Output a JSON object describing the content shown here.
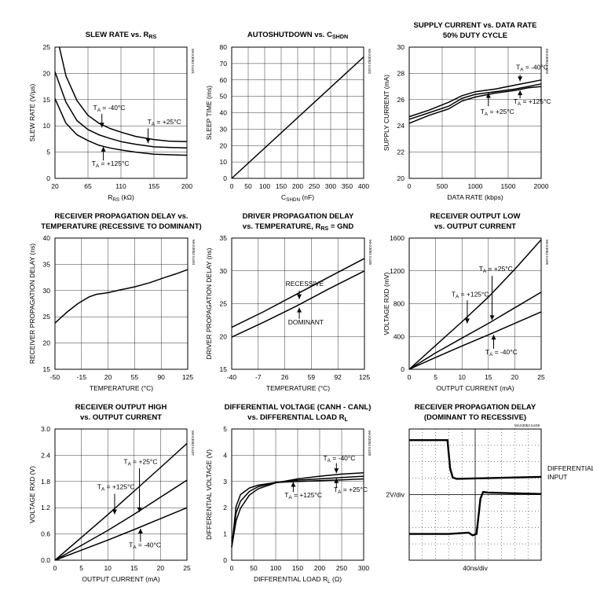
{
  "chart_data": [
    {
      "id": "c1",
      "type": "line",
      "title": [
        "SLEW RATE vs. R",
        "RS"
      ],
      "xlabel": [
        "R",
        "RS",
        " (kΩ)"
      ],
      "ylabel": "SLEW RATE (V/µs)",
      "xlim": [
        20,
        200
      ],
      "ylim": [
        0,
        25
      ],
      "xticks": [
        20,
        65,
        110,
        155,
        200
      ],
      "yticks": [
        0,
        5,
        10,
        15,
        20,
        25
      ],
      "grid": true,
      "part_id": "MAX3053 toc01",
      "series": [
        {
          "name": "TA = -40°C",
          "x": [
            26,
            35,
            50,
            65,
            80,
            95,
            110,
            130,
            155,
            175,
            200
          ],
          "y": [
            25,
            19.5,
            14.8,
            12.0,
            10.5,
            9.5,
            8.8,
            8.0,
            7.4,
            7.1,
            7.0
          ]
        },
        {
          "name": "TA = +25°C",
          "x": [
            20,
            35,
            50,
            65,
            80,
            95,
            110,
            130,
            155,
            175,
            200
          ],
          "y": [
            20.3,
            14.5,
            11.0,
            9.3,
            8.3,
            7.6,
            7.0,
            6.5,
            6.0,
            5.9,
            5.8
          ]
        },
        {
          "name": "TA = +125°C",
          "x": [
            20,
            35,
            50,
            65,
            80,
            95,
            110,
            130,
            155,
            175,
            200
          ],
          "y": [
            15.2,
            10.5,
            8.3,
            7.2,
            6.3,
            5.8,
            5.4,
            5.0,
            4.6,
            4.5,
            4.4
          ]
        }
      ],
      "annotations": [
        {
          "text": [
            "T",
            "A",
            " = -40°C"
          ],
          "x": 72,
          "y": 13.0,
          "arrow": [
            84,
            12.3,
            84,
            9.7
          ]
        },
        {
          "text": [
            "T",
            "A",
            " = +25°C"
          ],
          "x": 146,
          "y": 10.3,
          "arrow": [
            147,
            9.5,
            147,
            6.7
          ]
        },
        {
          "text": [
            "T",
            "A",
            " = +125°C"
          ],
          "x": 70,
          "y": 2.4,
          "arrow": [
            86,
            3.4,
            86,
            6.0
          ]
        }
      ]
    },
    {
      "id": "c2",
      "type": "line",
      "title": [
        "AUTOSHUTDOWN vs. C",
        "SHDN"
      ],
      "xlabel": [
        "C",
        "SHDN",
        " (nF)"
      ],
      "ylabel": "SLEEP TIME (ms)",
      "xlim": [
        0,
        400
      ],
      "ylim": [
        0,
        80
      ],
      "xticks": [
        0,
        50,
        100,
        150,
        200,
        250,
        300,
        350,
        400
      ],
      "yticks": [
        0,
        10,
        20,
        30,
        40,
        50,
        60,
        70,
        80
      ],
      "grid": true,
      "part_id": "MAX3053 toc02",
      "series": [
        {
          "name": "",
          "x": [
            0,
            400
          ],
          "y": [
            0,
            74
          ]
        }
      ],
      "annotations": []
    },
    {
      "id": "c3",
      "type": "line",
      "title": [
        "SUPPLY CURRENT vs. DATA RATE",
        "50% DUTY CYCLE"
      ],
      "xlabel": [
        "DATA RATE (kbps)"
      ],
      "ylabel": "SUPPLY CURRENT (mA)",
      "xlim": [
        0,
        2000
      ],
      "ylim": [
        20,
        30
      ],
      "xticks": [
        0,
        500,
        1000,
        1500,
        2000
      ],
      "yticks": [
        20,
        22,
        24,
        26,
        28,
        30
      ],
      "grid": true,
      "part_id": "MAX3053 toc03",
      "series": [
        {
          "name": "TA = -40°C",
          "x": [
            0,
            300,
            600,
            800,
            1000,
            1300,
            1600,
            1800,
            2000
          ],
          "y": [
            24.7,
            25.2,
            25.8,
            26.3,
            26.6,
            26.8,
            27.1,
            27.3,
            27.5
          ]
        },
        {
          "name": "TA = +25°C",
          "x": [
            0,
            300,
            600,
            800,
            1000,
            1300,
            1600,
            1800,
            2000
          ],
          "y": [
            24.5,
            25.0,
            25.5,
            26.1,
            26.4,
            26.6,
            26.8,
            27.0,
            27.2
          ]
        },
        {
          "name": "TA = +125°C",
          "x": [
            0,
            300,
            600,
            800,
            1000,
            1300,
            1600,
            1800,
            2000
          ],
          "y": [
            24.2,
            24.8,
            25.3,
            25.9,
            26.2,
            26.5,
            26.7,
            26.9,
            27.0
          ]
        }
      ],
      "annotations": [
        {
          "text": [
            "T",
            "A",
            " = -40°C"
          ],
          "x": 1620,
          "y": 28.3,
          "arrow": [
            1680,
            27.9,
            1680,
            27.4
          ]
        },
        {
          "text": [
            "T",
            "A",
            " = +25°C"
          ],
          "x": 1080,
          "y": 24.9,
          "arrow": [
            1200,
            25.5,
            1200,
            26.5
          ]
        },
        {
          "text": [
            "T",
            "A",
            " = +125°C"
          ],
          "x": 1580,
          "y": 25.7,
          "arrow": [
            1680,
            26.1,
            1680,
            26.7
          ]
        }
      ]
    },
    {
      "id": "c4",
      "type": "line",
      "title": [
        "RECEIVER PROPAGATION DELAY vs.",
        "TEMPERATURE (RECESSIVE TO DOMINANT)"
      ],
      "xlabel": [
        "TEMPERATURE (°C)"
      ],
      "ylabel": "RECEIVER PROPAGATION DELAY (ns)",
      "xlim": [
        -50,
        125
      ],
      "ylim": [
        15,
        40
      ],
      "xticks": [
        -50,
        -15,
        20,
        55,
        90,
        125
      ],
      "yticks": [
        15,
        20,
        25,
        30,
        35,
        40
      ],
      "grid": true,
      "part_id": "MAX3053 toc04",
      "series": [
        {
          "name": "",
          "x": [
            -50,
            -35,
            -20,
            -5,
            5,
            20,
            35,
            55,
            75,
            95,
            110,
            125
          ],
          "y": [
            23.8,
            25.8,
            27.5,
            28.8,
            29.3,
            29.6,
            30.1,
            30.7,
            31.5,
            32.5,
            33.2,
            34.0
          ]
        }
      ],
      "annotations": []
    },
    {
      "id": "c5",
      "type": "line",
      "title": [
        "DRIVER PROPAGATION DELAY",
        "vs. TEMPERATURE, R",
        "RS",
        " = GND"
      ],
      "xlabel": [
        "TEMPERATURE (°C)"
      ],
      "ylabel": "DRIVER PROPAGATION DELAY (ns)",
      "xlim": [
        -40,
        125
      ],
      "ylim": [
        15,
        35
      ],
      "xticks": [
        -40,
        -7,
        26,
        59,
        92,
        125
      ],
      "yticks": [
        15,
        20,
        25,
        30,
        35
      ],
      "grid": true,
      "part_id": "MAX3053 toc05",
      "series": [
        {
          "name": "RECESSIVE",
          "x": [
            -40,
            0,
            40,
            80,
            125
          ],
          "y": [
            21.4,
            23.8,
            26.4,
            29.0,
            31.9
          ]
        },
        {
          "name": "DOMINANT",
          "x": [
            -40,
            0,
            40,
            80,
            125
          ],
          "y": [
            19.9,
            22.2,
            24.6,
            27.2,
            30.0
          ]
        }
      ],
      "annotations": [
        {
          "text": [
            "RECESSIVE"
          ],
          "x": 27,
          "y": 27.7,
          "arrow": [
            44,
            27.0,
            44,
            25.7
          ]
        },
        {
          "text": [
            "DOMINANT"
          ],
          "x": 30,
          "y": 21.8,
          "arrow": [
            44,
            22.7,
            44,
            24.4
          ]
        }
      ]
    },
    {
      "id": "c6",
      "type": "line",
      "title": [
        "RECEIVER OUTPUT LOW",
        "vs. OUTPUT CURRENT"
      ],
      "xlabel": [
        "OUTPUT CURRENT (mA)"
      ],
      "ylabel": "VOLTAGE RXD (mV)",
      "xlim": [
        0,
        25
      ],
      "ylim": [
        0,
        1600
      ],
      "xticks": [
        0,
        5,
        10,
        15,
        20,
        25
      ],
      "yticks": [
        0,
        400,
        800,
        1200,
        1600
      ],
      "grid": true,
      "part_id": "MAX3053 toc06",
      "series": [
        {
          "name": "TA = +125°C",
          "x": [
            0,
            5,
            10,
            15,
            20,
            25
          ],
          "y": [
            0,
            290,
            580,
            880,
            1220,
            1580
          ]
        },
        {
          "name": "TA = +25°C",
          "x": [
            0,
            5,
            10,
            15,
            20,
            25
          ],
          "y": [
            0,
            200,
            380,
            560,
            750,
            940
          ]
        },
        {
          "name": "TA = -40°C",
          "x": [
            0,
            5,
            10,
            15,
            20,
            25
          ],
          "y": [
            0,
            145,
            285,
            420,
            560,
            700
          ]
        }
      ],
      "annotations": [
        {
          "text": [
            "T",
            "A",
            " = +25°C"
          ],
          "x": 13.2,
          "y": 1200,
          "arrow": [
            15.7,
            1140,
            15.7,
            600
          ]
        },
        {
          "text": [
            "T",
            "A",
            " = +125°C"
          ],
          "x": 8,
          "y": 885,
          "arrow": [
            11,
            840,
            11,
            560
          ]
        },
        {
          "text": [
            "T",
            "A",
            " = -40°C"
          ],
          "x": 14.4,
          "y": 180,
          "arrow": [
            16,
            250,
            16,
            420
          ]
        }
      ]
    },
    {
      "id": "c7",
      "type": "line",
      "title": [
        "RECEIVER OUTPUT HIGH",
        "vs. OUTPUT CURRENT"
      ],
      "xlabel": [
        "OUTPUT CURRENT (mA)"
      ],
      "ylabel": "VOLTAGE RXD (V)",
      "xlim": [
        0,
        25
      ],
      "ylim": [
        0,
        3.0
      ],
      "xticks": [
        0,
        5,
        10,
        15,
        20,
        25
      ],
      "yticks": [
        0,
        0.6,
        1.2,
        1.8,
        2.4,
        3.0
      ],
      "grid": true,
      "part_id": "MAX3053 toc07",
      "series": [
        {
          "name": "TA = +125°C",
          "x": [
            0,
            5,
            10,
            15,
            20,
            25
          ],
          "y": [
            0,
            0.52,
            1.04,
            1.58,
            2.12,
            2.67
          ]
        },
        {
          "name": "TA = +25°C",
          "x": [
            0,
            5,
            10,
            15,
            20,
            25
          ],
          "y": [
            0,
            0.34,
            0.68,
            1.05,
            1.44,
            1.83
          ]
        },
        {
          "name": "TA = -40°C",
          "x": [
            0,
            5,
            10,
            15,
            20,
            25
          ],
          "y": [
            0,
            0.23,
            0.46,
            0.7,
            0.95,
            1.2
          ]
        }
      ],
      "annotations": [
        {
          "text": [
            "T",
            "A",
            " = +25°C"
          ],
          "x": 13,
          "y": 2.2,
          "arrow": [
            16,
            2.1,
            16,
            1.1
          ]
        },
        {
          "text": [
            "T",
            "A",
            " = +125°C"
          ],
          "x": 8,
          "y": 1.63,
          "arrow": [
            11.3,
            1.52,
            11.3,
            1.05
          ]
        },
        {
          "text": [
            "T",
            "A",
            " = -40°C"
          ],
          "x": 14,
          "y": 0.3,
          "arrow": [
            16.2,
            0.42,
            16.2,
            0.72
          ]
        }
      ]
    },
    {
      "id": "c8",
      "type": "line",
      "title": [
        "DIFFERENTIAL VOLTAGE (CANH - CANL)",
        "vs. DIFFERENTIAL LOAD R",
        "L"
      ],
      "xlabel": [
        "DIFFERENTIAL LOAD R",
        "L",
        " (Ω)"
      ],
      "ylabel": "DIFFERENTIAL VOLTAGE (V)",
      "xlim": [
        0,
        300
      ],
      "ylim": [
        0,
        5
      ],
      "xticks": [
        0,
        50,
        100,
        150,
        200,
        250,
        300
      ],
      "yticks": [
        0,
        1,
        2,
        3,
        4,
        5
      ],
      "grid": true,
      "part_id": "MAX3053 toc08",
      "series": [
        {
          "name": "TA = -40°C",
          "x": [
            0,
            10,
            20,
            40,
            60,
            100,
            150,
            200,
            250,
            300
          ],
          "y": [
            0.5,
            1.5,
            1.98,
            2.48,
            2.72,
            2.95,
            3.1,
            3.2,
            3.28,
            3.33
          ]
        },
        {
          "name": "TA = +25°C",
          "x": [
            0,
            10,
            20,
            40,
            60,
            100,
            150,
            200,
            250,
            300
          ],
          "y": [
            0.5,
            1.8,
            2.25,
            2.62,
            2.8,
            2.97,
            3.05,
            3.1,
            3.15,
            3.2
          ]
        },
        {
          "name": "TA = +125°C",
          "x": [
            0,
            10,
            20,
            40,
            60,
            100,
            150,
            200,
            250,
            300
          ],
          "y": [
            0.5,
            2.05,
            2.5,
            2.75,
            2.86,
            2.96,
            3.0,
            3.03,
            3.06,
            3.1
          ]
        }
      ],
      "annotations": [
        {
          "text": [
            "T",
            "A",
            " = -40°C"
          ],
          "x": 208,
          "y": 3.8,
          "arrow": [
            238,
            3.7,
            238,
            3.32
          ]
        },
        {
          "text": [
            "T",
            "A",
            " = +125°C"
          ],
          "x": 120,
          "y": 2.4,
          "arrow": [
            140,
            2.6,
            140,
            2.98
          ]
        },
        {
          "text": [
            "T",
            "A",
            " = +25°C"
          ],
          "x": 232,
          "y": 2.6,
          "arrow": [
            238,
            2.75,
            238,
            3.12
          ]
        }
      ]
    }
  ],
  "scope": {
    "title": [
      "RECEIVER PROPAGATION DELAY",
      "(DOMINANT TO RECESSIVE)"
    ],
    "part_id": "MAX3053 toc09",
    "x_scale": "40ns/div",
    "y_scale": "2V/div",
    "trace_label": [
      "DIFFERENTIAL",
      "INPUT"
    ],
    "divisions": {
      "x": 10,
      "y": 8
    }
  }
}
